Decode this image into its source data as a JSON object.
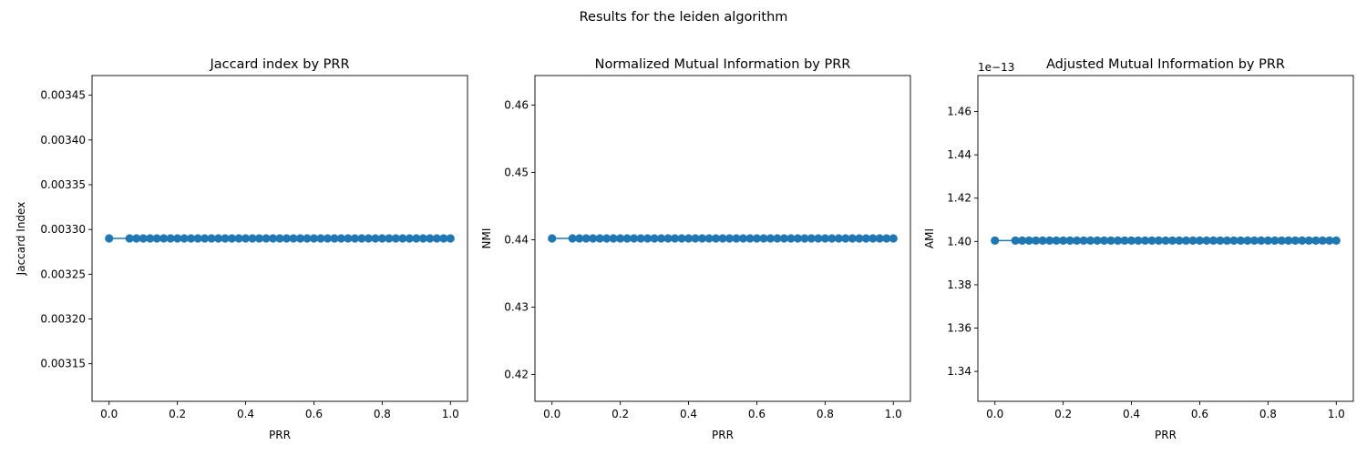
{
  "suptitle": "Results for the leiden algorithm",
  "colors": {
    "series": "#1f77b4",
    "axes": "#000000",
    "background": "#ffffff"
  },
  "chart_data": [
    {
      "type": "line",
      "title": "Jaccard index by PRR",
      "xlabel": "PRR",
      "ylabel": "Jaccard Index",
      "xlim": [
        -0.05,
        1.05
      ],
      "ylim": [
        0.003108,
        0.003472
      ],
      "xticks": [
        0.0,
        0.2,
        0.4,
        0.6,
        0.8,
        1.0
      ],
      "xtick_labels": [
        "0.0",
        "0.2",
        "0.4",
        "0.6",
        "0.8",
        "1.0"
      ],
      "yticks": [
        0.00315,
        0.0032,
        0.00325,
        0.0033,
        0.00335,
        0.0034,
        0.00345
      ],
      "ytick_labels": [
        "0.00315",
        "0.00320",
        "0.00325",
        "0.00330",
        "0.00335",
        "0.00340",
        "0.00345"
      ],
      "offset_label": "",
      "x": [
        0.0,
        0.06,
        0.08,
        0.1,
        0.12,
        0.14,
        0.16,
        0.18,
        0.2,
        0.22,
        0.24,
        0.26,
        0.28,
        0.3,
        0.32,
        0.34,
        0.36,
        0.38,
        0.4,
        0.42,
        0.44,
        0.46,
        0.48,
        0.5,
        0.52,
        0.54,
        0.56,
        0.58,
        0.6,
        0.62,
        0.64,
        0.66,
        0.68,
        0.7,
        0.72,
        0.74,
        0.76,
        0.78,
        0.8,
        0.82,
        0.84,
        0.86,
        0.88,
        0.9,
        0.92,
        0.94,
        0.96,
        0.98,
        1.0
      ],
      "y_const": 0.00329
    },
    {
      "type": "line",
      "title": "Normalized Mutual Information by PRR",
      "xlabel": "PRR",
      "ylabel": "NMI",
      "xlim": [
        -0.05,
        1.05
      ],
      "ylim": [
        0.416,
        0.4644
      ],
      "xticks": [
        0.0,
        0.2,
        0.4,
        0.6,
        0.8,
        1.0
      ],
      "xtick_labels": [
        "0.0",
        "0.2",
        "0.4",
        "0.6",
        "0.8",
        "1.0"
      ],
      "yticks": [
        0.42,
        0.43,
        0.44,
        0.45,
        0.46
      ],
      "ytick_labels": [
        "0.42",
        "0.43",
        "0.44",
        "0.45",
        "0.46"
      ],
      "offset_label": "",
      "x": [
        0.0,
        0.06,
        0.08,
        0.1,
        0.12,
        0.14,
        0.16,
        0.18,
        0.2,
        0.22,
        0.24,
        0.26,
        0.28,
        0.3,
        0.32,
        0.34,
        0.36,
        0.38,
        0.4,
        0.42,
        0.44,
        0.46,
        0.48,
        0.5,
        0.52,
        0.54,
        0.56,
        0.58,
        0.6,
        0.62,
        0.64,
        0.66,
        0.68,
        0.7,
        0.72,
        0.74,
        0.76,
        0.78,
        0.8,
        0.82,
        0.84,
        0.86,
        0.88,
        0.9,
        0.92,
        0.94,
        0.96,
        0.98,
        1.0
      ],
      "y_const": 0.4402
    },
    {
      "type": "line",
      "title": "Adjusted Mutual Information by PRR",
      "xlabel": "PRR",
      "ylabel": "AMI",
      "xlim": [
        -0.05,
        1.05
      ],
      "ylim": [
        1.3262,
        1.4766
      ],
      "xticks": [
        0.0,
        0.2,
        0.4,
        0.6,
        0.8,
        1.0
      ],
      "xtick_labels": [
        "0.0",
        "0.2",
        "0.4",
        "0.6",
        "0.8",
        "1.0"
      ],
      "yticks": [
        1.34,
        1.36,
        1.38,
        1.4,
        1.42,
        1.44,
        1.46
      ],
      "ytick_labels": [
        "1.34",
        "1.36",
        "1.38",
        "1.40",
        "1.42",
        "1.44",
        "1.46"
      ],
      "offset_label": "1e−13",
      "x": [
        0.0,
        0.06,
        0.08,
        0.1,
        0.12,
        0.14,
        0.16,
        0.18,
        0.2,
        0.22,
        0.24,
        0.26,
        0.28,
        0.3,
        0.32,
        0.34,
        0.36,
        0.38,
        0.4,
        0.42,
        0.44,
        0.46,
        0.48,
        0.5,
        0.52,
        0.54,
        0.56,
        0.58,
        0.6,
        0.62,
        0.64,
        0.66,
        0.68,
        0.7,
        0.72,
        0.74,
        0.76,
        0.78,
        0.8,
        0.82,
        0.84,
        0.86,
        0.88,
        0.9,
        0.92,
        0.94,
        0.96,
        0.98,
        1.0
      ],
      "y_const": 1.4004
    }
  ]
}
